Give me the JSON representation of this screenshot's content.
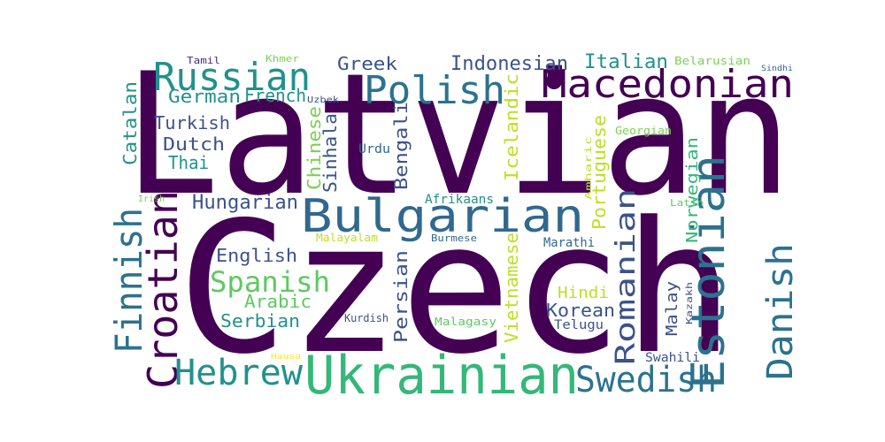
{
  "word_cloud": {
    "words": [
      {
        "text": "Latvian",
        "color": "#440154"
      },
      {
        "text": "Czech",
        "color": "#440154"
      },
      {
        "text": "Macedonian",
        "color": "#440154"
      },
      {
        "text": "Ukrainian",
        "color": "#35b779"
      },
      {
        "text": "Bulgarian",
        "color": "#31688e"
      },
      {
        "text": "Estonian",
        "color": "#2c728e"
      },
      {
        "text": "Polish",
        "color": "#2c728e"
      },
      {
        "text": "Russian",
        "color": "#21918c"
      },
      {
        "text": "Swedish",
        "color": "#2c728e"
      },
      {
        "text": "Croatian",
        "color": "#440154"
      },
      {
        "text": "Finnish",
        "color": "#2c728e"
      },
      {
        "text": "Danish",
        "color": "#2c728e"
      },
      {
        "text": "Hebrew",
        "color": "#21918c"
      },
      {
        "text": "Romanian",
        "color": "#3b528b"
      },
      {
        "text": "Spanish",
        "color": "#5ec962"
      },
      {
        "text": "Hungarian",
        "color": "#3b528b"
      },
      {
        "text": "Italian",
        "color": "#21918c"
      },
      {
        "text": "Indonesian",
        "color": "#3b528b"
      },
      {
        "text": "Greek",
        "color": "#3b528b"
      },
      {
        "text": "English",
        "color": "#3b528b"
      },
      {
        "text": "German",
        "color": "#21918c"
      },
      {
        "text": "French",
        "color": "#21918c"
      },
      {
        "text": "Turkish",
        "color": "#3b528b"
      },
      {
        "text": "Dutch",
        "color": "#3b528b"
      },
      {
        "text": "Thai",
        "color": "#21918c"
      },
      {
        "text": "Catalan",
        "color": "#21918c"
      },
      {
        "text": "Chinese",
        "color": "#7ad151"
      },
      {
        "text": "Sinhala",
        "color": "#3b528b"
      },
      {
        "text": "Bengali",
        "color": "#3b528b"
      },
      {
        "text": "Icelandic",
        "color": "#bddf26"
      },
      {
        "text": "Portuguese",
        "color": "#bddf26"
      },
      {
        "text": "Vietnamese",
        "color": "#bddf26"
      },
      {
        "text": "Persian",
        "color": "#3b528b"
      },
      {
        "text": "Serbian",
        "color": "#21918c"
      },
      {
        "text": "Arabic",
        "color": "#5ec962"
      },
      {
        "text": "Korean",
        "color": "#3b528b"
      },
      {
        "text": "Norwegian",
        "color": "#35b779"
      },
      {
        "text": "Malay",
        "color": "#3b528b"
      },
      {
        "text": "Hindi",
        "color": "#bddf26"
      },
      {
        "text": "Swahili",
        "color": "#3b528b"
      },
      {
        "text": "Urdu",
        "color": "#31688e"
      },
      {
        "text": "Afrikaans",
        "color": "#21918c"
      },
      {
        "text": "Marathi",
        "color": "#31688e"
      },
      {
        "text": "Telugu",
        "color": "#3b528b"
      },
      {
        "text": "Kurdish",
        "color": "#3b528b"
      },
      {
        "text": "Malagasy",
        "color": "#5ec962"
      },
      {
        "text": "Malayalam",
        "color": "#bddf26"
      },
      {
        "text": "Burmese",
        "color": "#31688e"
      },
      {
        "text": "Georgian",
        "color": "#7ad151"
      },
      {
        "text": "Latin",
        "color": "#5ec962"
      },
      {
        "text": "Belarusian",
        "color": "#7ad151"
      },
      {
        "text": "Sindhi",
        "color": "#31688e"
      },
      {
        "text": "Tamil",
        "color": "#482878"
      },
      {
        "text": "Khmer",
        "color": "#7ad151"
      },
      {
        "text": "Uzbek",
        "color": "#3b528b"
      },
      {
        "text": "Irish",
        "color": "#7ad151"
      },
      {
        "text": "Amharic",
        "color": "#bddf26"
      },
      {
        "text": "Kazakh",
        "color": "#3b528b"
      },
      {
        "text": "Hausa",
        "color": "#fde725"
      }
    ]
  }
}
